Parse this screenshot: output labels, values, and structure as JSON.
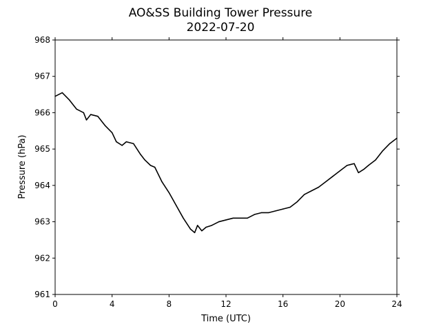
{
  "chart_data": {
    "type": "line",
    "title": "AO&SS Building Tower Pressure",
    "subtitle": "2022-07-20",
    "xlabel": "Time (UTC)",
    "ylabel": "Pressure (hPa)",
    "xlim": [
      0,
      24
    ],
    "ylim": [
      961,
      968
    ],
    "x_ticks": [
      "0",
      "4",
      "8",
      "12",
      "16",
      "20",
      "24"
    ],
    "y_ticks": [
      "961",
      "962",
      "963",
      "964",
      "965",
      "966",
      "967",
      "968"
    ],
    "grid": false,
    "legend": "none",
    "line_color": "#000000",
    "series": [
      {
        "x": [
          0,
          0.5,
          1,
          1.5,
          2,
          2.2,
          2.5,
          3,
          3.5,
          4,
          4.3,
          4.7,
          5,
          5.5,
          6,
          6.3,
          6.7,
          7,
          7.5,
          8,
          8.5,
          9,
          9.5,
          9.8,
          10,
          10.3,
          10.6,
          11,
          11.5,
          12,
          12.5,
          13,
          13.5,
          14,
          14.5,
          15,
          15.5,
          16,
          16.5,
          17,
          17.5,
          18,
          18.5,
          19,
          19.5,
          20,
          20.5,
          21,
          21.3,
          21.7,
          22,
          22.5,
          23,
          23.5,
          24
        ],
        "values": [
          966.45,
          966.55,
          966.35,
          966.1,
          966.0,
          965.8,
          965.95,
          965.9,
          965.65,
          965.45,
          965.2,
          965.1,
          965.2,
          965.15,
          964.85,
          964.7,
          964.55,
          964.5,
          964.1,
          963.8,
          963.45,
          963.1,
          962.8,
          962.7,
          962.9,
          962.75,
          962.85,
          962.9,
          963.0,
          963.05,
          963.1,
          963.1,
          963.1,
          963.2,
          963.25,
          963.25,
          963.3,
          963.35,
          963.4,
          963.55,
          963.75,
          963.85,
          963.95,
          964.1,
          964.25,
          964.4,
          964.55,
          964.6,
          964.35,
          964.45,
          964.55,
          964.7,
          964.95,
          965.15,
          965.3
        ]
      }
    ]
  }
}
